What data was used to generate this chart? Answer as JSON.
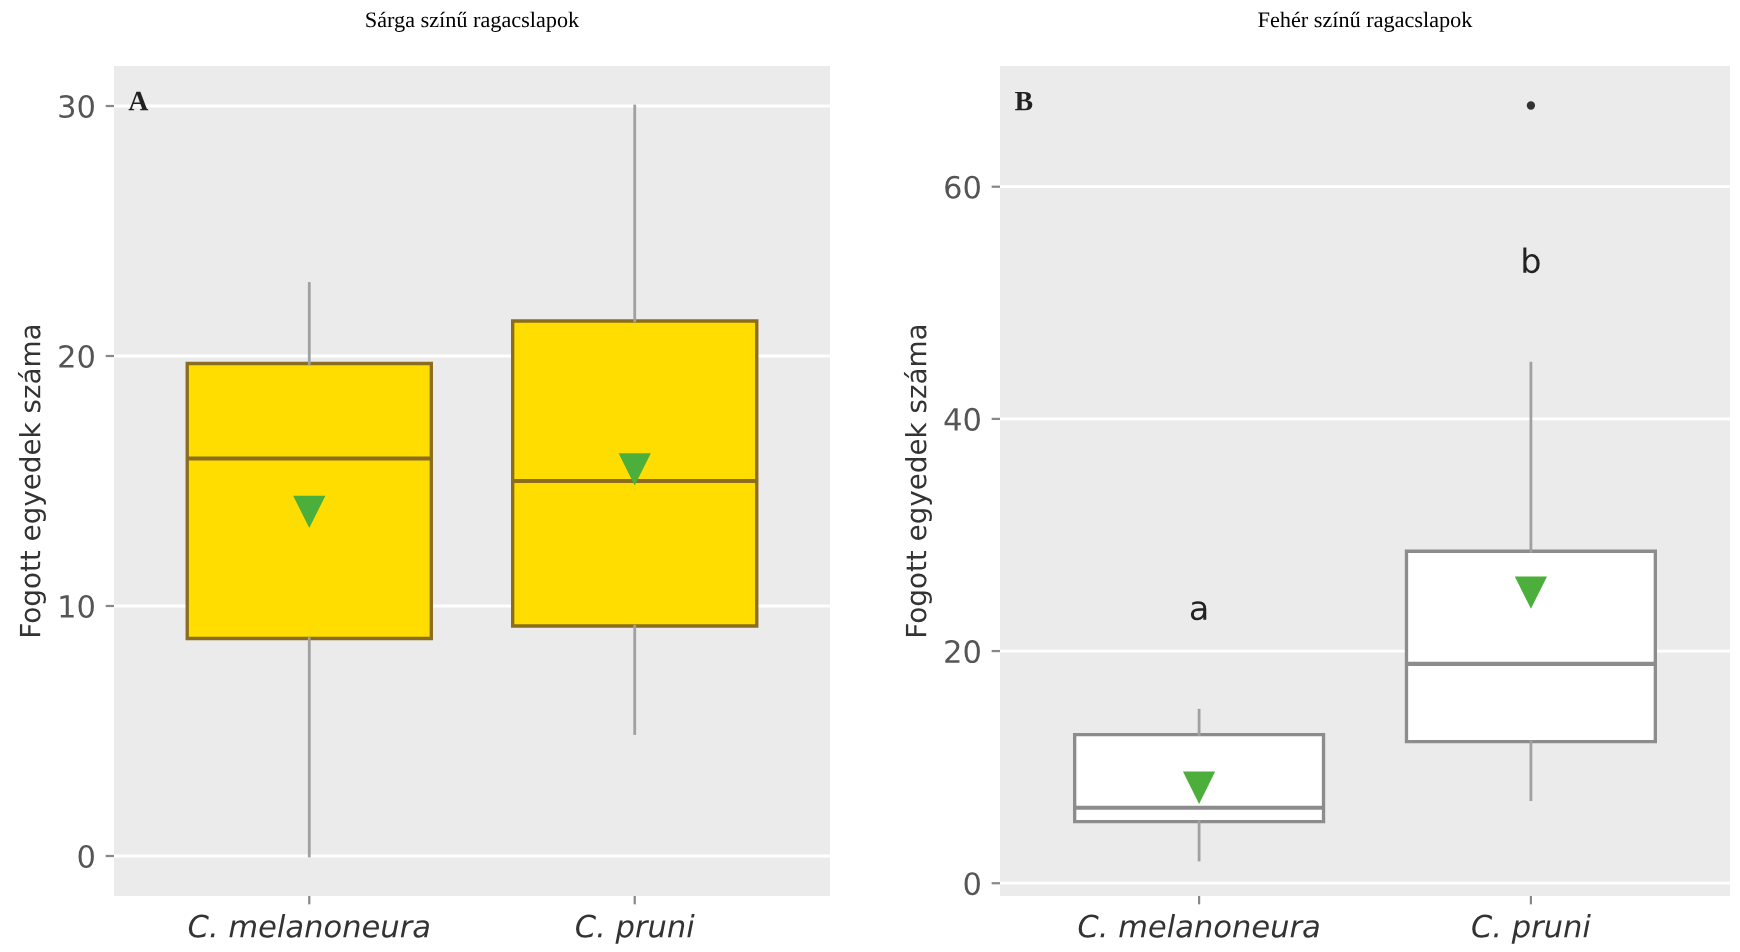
{
  "chart_data": [
    {
      "type": "box",
      "title": "Sárga színű ragacslapok",
      "ylabel": "Fogott egyedek száma",
      "categories": [
        "C. melanoneura",
        "C. pruni"
      ],
      "ylim": [
        -1.6,
        31.6
      ],
      "yticks": [
        0,
        10,
        20,
        30
      ],
      "grid": "y",
      "annotations": [
        "A"
      ],
      "series": [
        {
          "color": "#ffdd00",
          "boxes": [
            {
              "low": 0,
              "q1": 8.7,
              "median": 15.9,
              "q3": 19.7,
              "high": 22.9,
              "mean": 13.8
            },
            {
              "low": 4.9,
              "q1": 9.2,
              "median": 15,
              "q3": 21.4,
              "high": 30,
              "mean": 15.5
            }
          ]
        }
      ]
    },
    {
      "type": "box",
      "title": "Fehér színű ragacslapok",
      "ylabel": "Fogott egyedek száma",
      "categories": [
        "C. melanoneura",
        "C. pruni"
      ],
      "ylim": [
        -1.1,
        70.4
      ],
      "yticks": [
        0,
        20,
        40,
        60
      ],
      "grid": "y",
      "annotations": [
        "B",
        "a",
        "b"
      ],
      "series": [
        {
          "color": "#ffffff",
          "boxes": [
            {
              "low": 2,
              "q1": 5.3,
              "median": 6.5,
              "q3": 12.8,
              "high": 14.9,
              "mean": 8.3
            },
            {
              "low": 7.2,
              "q1": 12.2,
              "median": 18.9,
              "q3": 28.6,
              "high": 44.8,
              "mean": 25.1,
              "outliers": [
                67
              ]
            }
          ]
        }
      ]
    }
  ]
}
